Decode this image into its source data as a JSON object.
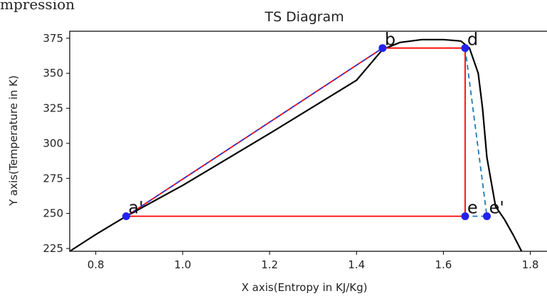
{
  "caption_text": "mpression",
  "chart_data": {
    "type": "line",
    "title": "TS Diagram",
    "xlabel": "X axis(Entropy in KJ/Kg)",
    "ylabel": "Y axis(Temperature in K)",
    "xlim": [
      0.74,
      1.84
    ],
    "ylim": [
      223,
      380
    ],
    "xticks": [
      0.8,
      1.0,
      1.2,
      1.4,
      1.6,
      1.8
    ],
    "yticks": [
      225,
      250,
      275,
      300,
      325,
      350,
      375
    ],
    "grid": false,
    "series": [
      {
        "color": "#000000",
        "style": "solid",
        "x": [
          0.74,
          0.8,
          0.87,
          1.0,
          1.2,
          1.4,
          1.46,
          1.5,
          1.55,
          1.6,
          1.64,
          1.66,
          1.68,
          1.69,
          1.7,
          1.72,
          1.74,
          1.76,
          1.78
        ],
        "y": [
          223,
          235,
          248,
          270,
          307,
          345,
          367,
          372,
          374,
          374,
          373,
          368,
          350,
          325,
          290,
          255,
          246,
          235,
          223
        ]
      },
      {
        "color": "#ff0000",
        "style": "solid",
        "x": [
          0.87,
          1.46,
          1.65,
          1.65,
          0.87
        ],
        "y": [
          248,
          368,
          368,
          248,
          248
        ]
      },
      {
        "color": "#3333cc",
        "style": "dashed",
        "x": [
          0.87,
          1.46
        ],
        "y": [
          248,
          368
        ]
      },
      {
        "color": "#1f77b4",
        "style": "dashed",
        "x": [
          1.65,
          1.7,
          1.65
        ],
        "y": [
          368,
          248,
          248
        ]
      }
    ],
    "points": [
      {
        "label": "a'",
        "x": 0.87,
        "y": 248
      },
      {
        "label": "b",
        "x": 1.46,
        "y": 368
      },
      {
        "label": "d",
        "x": 1.65,
        "y": 368
      },
      {
        "label": "e",
        "x": 1.65,
        "y": 248
      },
      {
        "label": "e'",
        "x": 1.7,
        "y": 248
      }
    ],
    "marker_color": "#2222ee"
  }
}
